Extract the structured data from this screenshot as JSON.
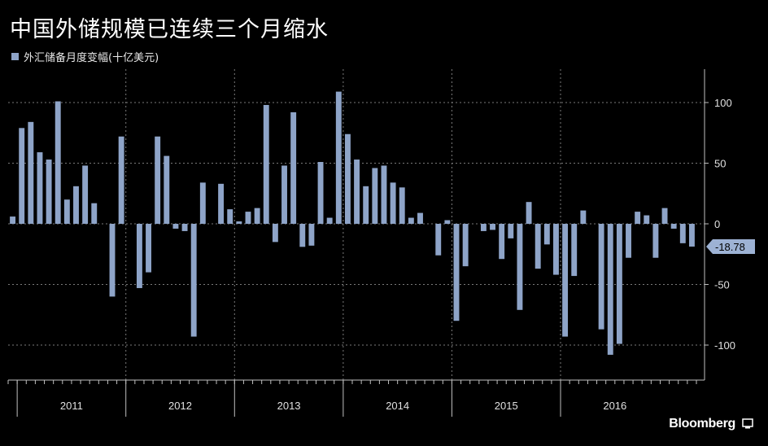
{
  "title": "中国外储规模已连续三个月缩水",
  "brand": "Bloomberg",
  "colors": {
    "bar": "#8ea4c8",
    "background": "#000000",
    "grid": "#7a7a7a",
    "axis": "#bfbfbf",
    "last_value_tag": "#9db2d4"
  },
  "chart_data": {
    "type": "bar",
    "series": [
      {
        "name": "外汇储备月度变幅(十亿美元)",
        "values": [
          6,
          79,
          84,
          59,
          53,
          101,
          20,
          31,
          48,
          17,
          0,
          -60,
          72,
          0,
          -53,
          -40,
          72,
          56,
          -4,
          -6,
          -93,
          34,
          0,
          33,
          12,
          2,
          10,
          13,
          98,
          -15,
          48,
          92,
          -19,
          -18,
          51,
          5,
          109,
          74,
          53,
          31,
          46,
          48,
          34,
          30,
          5,
          9,
          0,
          -26,
          3,
          -80,
          -35,
          0,
          -6,
          -5,
          -29,
          -12,
          -71,
          18,
          -37,
          -17,
          -42,
          -93,
          -43,
          11,
          0,
          -87,
          -108,
          -99,
          -28,
          10,
          7,
          -28,
          13,
          -4,
          -16,
          -18.78
        ],
        "last_value_label": "-18.78"
      }
    ],
    "x_axis": {
      "type": "time",
      "start": "2010-12",
      "frequency": "monthly",
      "year_labels": [
        "2011",
        "2012",
        "2013",
        "2014",
        "2015",
        "2016"
      ]
    },
    "y_axis": {
      "position": "right",
      "ticks": [
        100,
        50,
        0,
        -50,
        -100
      ],
      "tick_labels": [
        "100",
        "50",
        "0",
        "-50",
        "-100"
      ],
      "ylim": [
        -128,
        130
      ]
    },
    "grid": true,
    "legend": "top-left"
  }
}
